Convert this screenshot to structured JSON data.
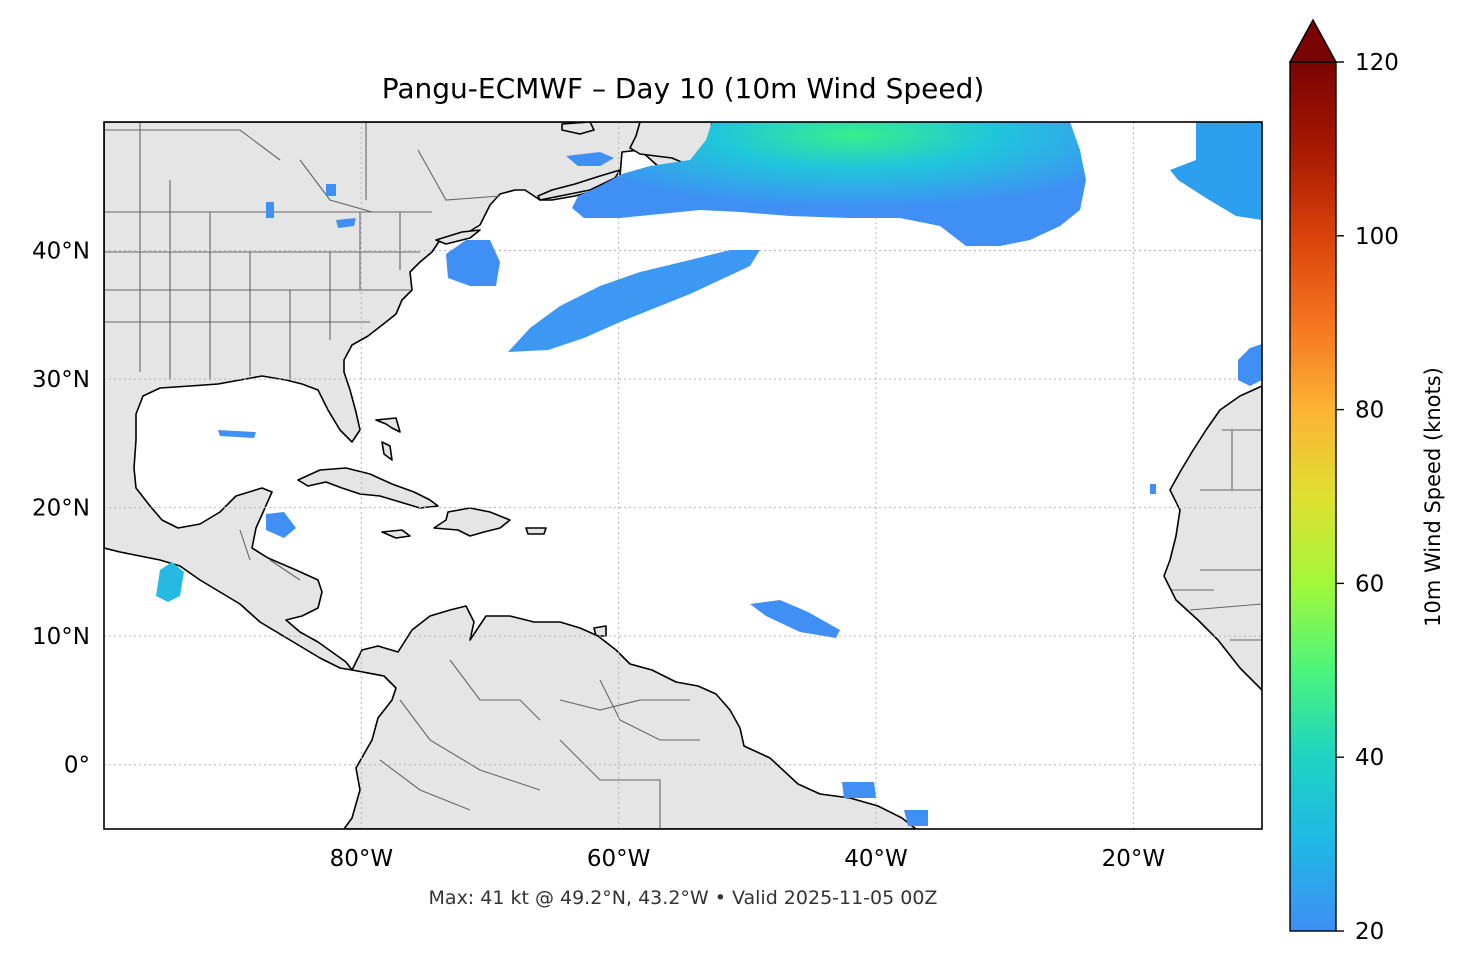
{
  "title": "Pangu-ECMWF – Day 10 (10m Wind Speed)",
  "footer": "Max: 41 kt @ 49.2°N, 43.2°W • Valid 2025-11-05 00Z",
  "map": {
    "lon_range": [
      -100,
      -10
    ],
    "lat_range": [
      -5,
      50
    ],
    "lat_ticks": [
      {
        "value": 40,
        "label": "40°N"
      },
      {
        "value": 30,
        "label": "30°N"
      },
      {
        "value": 20,
        "label": "20°N"
      },
      {
        "value": 10,
        "label": "10°N"
      },
      {
        "value": 0,
        "label": "0°"
      }
    ],
    "lon_ticks": [
      {
        "value": -80,
        "label": "80°W"
      },
      {
        "value": -60,
        "label": "60°W"
      },
      {
        "value": -40,
        "label": "40°W"
      },
      {
        "value": -20,
        "label": "20°W"
      }
    ],
    "gridlines": true
  },
  "colorbar": {
    "label": "10m Wind Speed (knots)",
    "ticks": [
      "20",
      "40",
      "60",
      "80",
      "100",
      "120"
    ],
    "min": 20,
    "max": 120,
    "extend": "max",
    "colors": [
      "#3f8ff5",
      "#1ec9d8",
      "#2fef8e",
      "#a2f83a",
      "#e0d932",
      "#fca635",
      "#f26a1d",
      "#cb2f07",
      "#7a0403"
    ]
  },
  "max_wind": {
    "speed_kt": 41,
    "lat": 49.2,
    "lon": -43.2
  }
}
